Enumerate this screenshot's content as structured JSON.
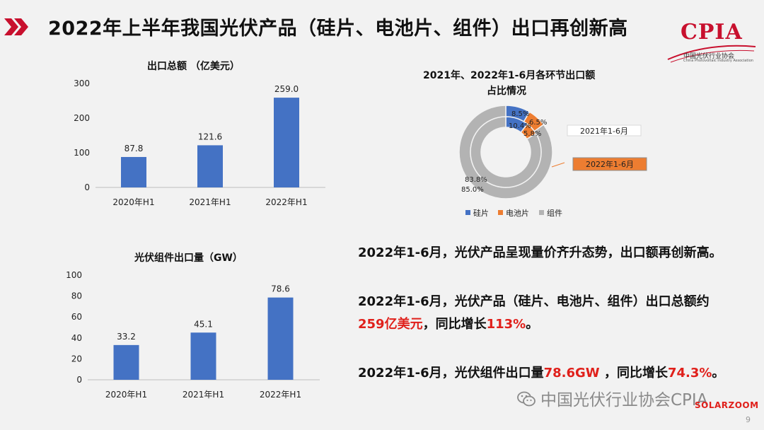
{
  "header": {
    "title": "2022年上半年我国光伏产品（硅片、电池片、组件）出口再创新高",
    "accent_color": "#c8102e"
  },
  "logo": {
    "text": "CPIA",
    "subtitle": "中国光伏行业协会",
    "subtitle_en": "China Photovoltaic Industry Association"
  },
  "chart_data": [
    {
      "type": "bar",
      "title": "出口总额 （亿美元）",
      "categories": [
        "2020年H1",
        "2021年H1",
        "2022年H1"
      ],
      "values": [
        87.8,
        121.6,
        259.0
      ],
      "value_labels": [
        "87.8",
        "121.6",
        "259.0"
      ],
      "ylim": [
        0,
        300
      ],
      "yticks": [
        0,
        100,
        200,
        300
      ],
      "bar_color": "#4472c4",
      "grid": false
    },
    {
      "type": "bar",
      "title": "光伏组件出口量（GW）",
      "categories": [
        "2020年H1",
        "2021年H1",
        "2022年H1"
      ],
      "values": [
        33.2,
        45.1,
        78.6
      ],
      "value_labels": [
        "33.2",
        "45.1",
        "78.6"
      ],
      "ylim": [
        0,
        100
      ],
      "yticks": [
        0,
        20,
        40,
        60,
        80,
        100
      ],
      "bar_color": "#4472c4",
      "grid": false
    },
    {
      "type": "pie",
      "subtype": "nested-donut",
      "title_line1": "2021年、2022年1-6月各环节出口额",
      "title_line2": "占比情况",
      "categories": [
        "硅片",
        "电池片",
        "组件"
      ],
      "colors": [
        "#4472c4",
        "#ed7d31",
        "#b3b3b3"
      ],
      "series": [
        {
          "name": "2022年1-6月",
          "values": [
            8.5,
            6.5,
            85.0
          ],
          "labels": [
            "8.5%",
            "6.5%",
            "85.0%"
          ]
        },
        {
          "name": "2021年1-6月",
          "values": [
            10.4,
            5.8,
            83.8
          ],
          "labels": [
            "10.4%",
            "5.8%",
            "83.8%"
          ]
        }
      ],
      "legend_position": "bottom"
    }
  ],
  "text": {
    "p1": "2022年1-6月，光伏产品呈现量价齐升态势，出口额再创新高。",
    "p2_line1": "2022年1-6月，光伏产品（硅片、电池片、组件）出口总额约",
    "p2_red1": "259亿美元",
    "p2_mid": "，同比增长",
    "p2_red2": "113%",
    "p2_end": "。",
    "p3_a": "2022年1-6月，光伏组件出口量",
    "p3_red1": "78.6GW",
    "p3_mid": " ，同比增长",
    "p3_red2": "74.3%",
    "p3_end": "。"
  },
  "footer": {
    "watermark": "中国光伏行业协会CPIA",
    "solarzoom": "SOLARZOOM",
    "page_number": "9"
  }
}
